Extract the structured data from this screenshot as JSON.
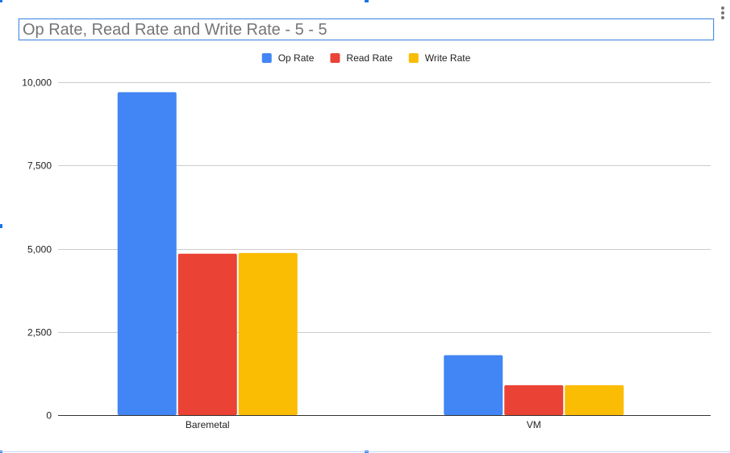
{
  "chart": {
    "title": "Op Rate, Read Rate and Write Rate - 5 - 5",
    "menu_icon": "more-vert-icon"
  },
  "chart_data": {
    "type": "bar",
    "title": "Op Rate, Read Rate and Write Rate - 5 - 5",
    "categories": [
      "Baremetal",
      "VM"
    ],
    "series": [
      {
        "name": "Op Rate",
        "color": "#4285f4",
        "values": [
          9700,
          1800
        ]
      },
      {
        "name": "Read Rate",
        "color": "#ea4335",
        "values": [
          4850,
          900
        ]
      },
      {
        "name": "Write Rate",
        "color": "#fbbc04",
        "values": [
          4870,
          900
        ]
      }
    ],
    "xlabel": "",
    "ylabel": "",
    "ylim": [
      0,
      10000
    ],
    "yticks": [
      0,
      2500,
      5000,
      7500,
      10000
    ],
    "ytick_labels": [
      "0",
      "2,500",
      "5,000",
      "7,500",
      "10,000"
    ],
    "grid": true,
    "legend_position": "top"
  }
}
